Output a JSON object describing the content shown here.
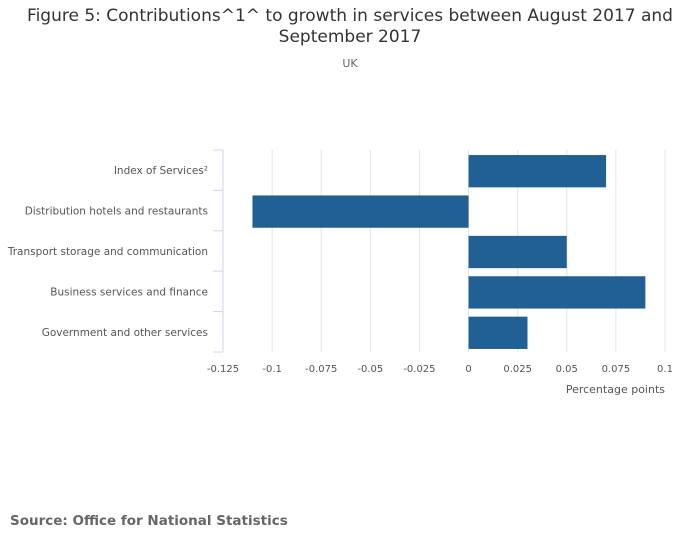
{
  "page": {
    "title_line1": "Figure 5: Contributions^1^ to growth in services between August 2017 and",
    "title_line2": "September 2017",
    "subtitle": "UK",
    "source": "Source: Office for National Statistics"
  },
  "chart_data": {
    "type": "bar",
    "orientation": "horizontal",
    "title": "Figure 5: Contributions^1^ to growth in services between August 2017 and September 2017",
    "subtitle": "UK",
    "categories": [
      "Index of Services²",
      "Distribution hotels and restaurants",
      "Transport storage and communication",
      "Business services and finance",
      "Government and other services"
    ],
    "values": [
      0.07,
      -0.11,
      0.05,
      0.09,
      0.03
    ],
    "xlabel": "Percentage points",
    "ylabel": "",
    "xlim": [
      -0.125,
      0.1
    ],
    "xticks": [
      -0.125,
      -0.1,
      -0.075,
      -0.05,
      -0.025,
      0,
      0.025,
      0.05,
      0.075,
      0.1
    ],
    "xtick_labels": [
      "-0.125",
      "-0.1",
      "-0.075",
      "-0.05",
      "-0.025",
      "0",
      "0.025",
      "0.05",
      "0.075",
      "0.1"
    ],
    "grid": true,
    "bar_color": "#206095",
    "legend": "none"
  }
}
